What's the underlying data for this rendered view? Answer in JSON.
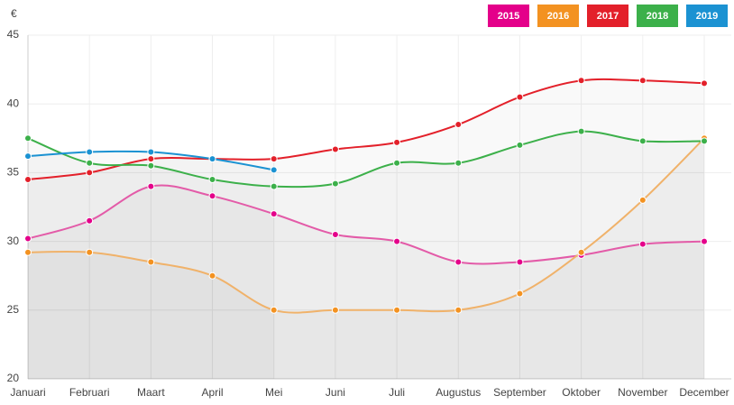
{
  "chart_data": {
    "type": "line",
    "y_label": "€",
    "categories": [
      "Januari",
      "Februari",
      "Maart",
      "April",
      "Mei",
      "Juni",
      "Juli",
      "Augustus",
      "September",
      "Oktober",
      "November",
      "December"
    ],
    "series": [
      {
        "name": "2015",
        "color": "#e4008a",
        "line_color": "#e35ba8",
        "values": [
          30.2,
          31.5,
          34.0,
          33.3,
          32.0,
          30.5,
          30.0,
          28.5,
          28.5,
          29.0,
          29.8,
          30.0
        ]
      },
      {
        "name": "2016",
        "color": "#f39221",
        "line_color": "#f0b26a",
        "values": [
          29.2,
          29.2,
          28.5,
          27.5,
          25.0,
          25.0,
          25.0,
          25.0,
          26.2,
          29.2,
          33.0,
          37.5
        ]
      },
      {
        "name": "2017",
        "color": "#e3202a",
        "line_color": "#e3202a",
        "values": [
          34.5,
          35.0,
          36.0,
          36.0,
          36.0,
          36.7,
          37.2,
          38.5,
          40.5,
          41.7,
          41.7,
          41.5
        ]
      },
      {
        "name": "2018",
        "color": "#3cb04a",
        "line_color": "#3cb04a",
        "values": [
          37.5,
          35.7,
          35.5,
          34.5,
          34.0,
          34.2,
          35.7,
          35.7,
          37.0,
          38.0,
          37.3,
          37.3
        ]
      },
      {
        "name": "2019",
        "color": "#1b92d2",
        "line_color": "#1b92d2",
        "values": [
          36.2,
          36.5,
          36.5,
          36.0,
          35.2,
          null,
          null,
          null,
          null,
          null,
          null,
          null
        ]
      }
    ],
    "ylim": [
      20,
      45
    ],
    "yticks": [
      20,
      25,
      30,
      35,
      40,
      45
    ],
    "grid": true,
    "legend": "top-right",
    "smooth": true,
    "area": true
  }
}
